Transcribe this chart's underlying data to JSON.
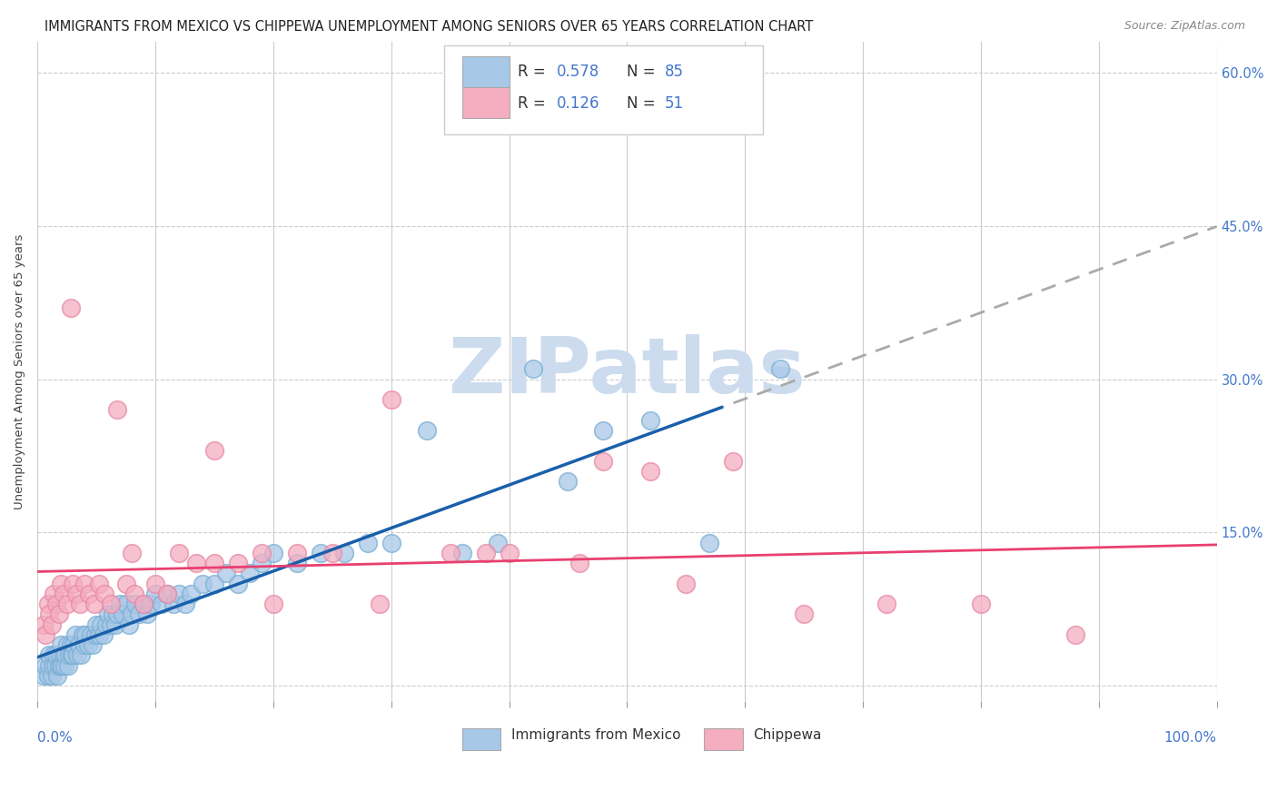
{
  "title": "IMMIGRANTS FROM MEXICO VS CHIPPEWA UNEMPLOYMENT AMONG SENIORS OVER 65 YEARS CORRELATION CHART",
  "source": "Source: ZipAtlas.com",
  "ylabel": "Unemployment Among Seniors over 65 years",
  "yticks": [
    0.0,
    0.15,
    0.3,
    0.45,
    0.6
  ],
  "ytick_labels": [
    "",
    "15.0%",
    "30.0%",
    "45.0%",
    "60.0%"
  ],
  "xlim": [
    0.0,
    1.0
  ],
  "ylim": [
    -0.015,
    0.63
  ],
  "blue_color": "#a8c8e8",
  "pink_color": "#f4aec0",
  "blue_edge": "#7aafd4",
  "pink_edge": "#e888a8",
  "trend_blue": "#1a5faa",
  "trend_pink": "#e84070",
  "trend_dashed_color": "#aaaaaa",
  "watermark_color": "#ccdcee",
  "background_color": "#ffffff",
  "grid_color": "#cccccc",
  "blue_x": [
    0.005,
    0.007,
    0.009,
    0.01,
    0.01,
    0.012,
    0.013,
    0.014,
    0.015,
    0.016,
    0.017,
    0.018,
    0.019,
    0.02,
    0.02,
    0.021,
    0.022,
    0.023,
    0.024,
    0.025,
    0.026,
    0.027,
    0.028,
    0.029,
    0.03,
    0.031,
    0.032,
    0.034,
    0.035,
    0.037,
    0.038,
    0.04,
    0.041,
    0.043,
    0.045,
    0.047,
    0.049,
    0.05,
    0.052,
    0.054,
    0.056,
    0.058,
    0.06,
    0.062,
    0.064,
    0.066,
    0.068,
    0.07,
    0.072,
    0.075,
    0.078,
    0.08,
    0.083,
    0.086,
    0.09,
    0.093,
    0.096,
    0.1,
    0.105,
    0.11,
    0.115,
    0.12,
    0.125,
    0.13,
    0.14,
    0.15,
    0.16,
    0.17,
    0.18,
    0.19,
    0.2,
    0.22,
    0.24,
    0.26,
    0.28,
    0.3,
    0.33,
    0.36,
    0.39,
    0.42,
    0.45,
    0.48,
    0.52,
    0.57,
    0.63
  ],
  "blue_y": [
    0.01,
    0.02,
    0.01,
    0.02,
    0.03,
    0.01,
    0.02,
    0.03,
    0.02,
    0.03,
    0.01,
    0.02,
    0.03,
    0.02,
    0.04,
    0.02,
    0.03,
    0.02,
    0.03,
    0.04,
    0.02,
    0.03,
    0.04,
    0.03,
    0.03,
    0.04,
    0.05,
    0.03,
    0.04,
    0.03,
    0.05,
    0.04,
    0.05,
    0.04,
    0.05,
    0.04,
    0.05,
    0.06,
    0.05,
    0.06,
    0.05,
    0.06,
    0.07,
    0.06,
    0.07,
    0.06,
    0.07,
    0.08,
    0.07,
    0.08,
    0.06,
    0.07,
    0.08,
    0.07,
    0.08,
    0.07,
    0.08,
    0.09,
    0.08,
    0.09,
    0.08,
    0.09,
    0.08,
    0.09,
    0.1,
    0.1,
    0.11,
    0.1,
    0.11,
    0.12,
    0.13,
    0.12,
    0.13,
    0.13,
    0.14,
    0.14,
    0.25,
    0.13,
    0.14,
    0.31,
    0.2,
    0.25,
    0.26,
    0.14,
    0.31
  ],
  "pink_x": [
    0.005,
    0.007,
    0.009,
    0.01,
    0.012,
    0.014,
    0.016,
    0.018,
    0.02,
    0.022,
    0.025,
    0.028,
    0.03,
    0.033,
    0.036,
    0.04,
    0.044,
    0.048,
    0.052,
    0.057,
    0.062,
    0.068,
    0.075,
    0.082,
    0.09,
    0.1,
    0.11,
    0.12,
    0.135,
    0.15,
    0.17,
    0.19,
    0.22,
    0.25,
    0.29,
    0.35,
    0.4,
    0.46,
    0.52,
    0.59,
    0.65,
    0.72,
    0.8,
    0.88,
    0.55,
    0.48,
    0.38,
    0.3,
    0.2,
    0.08,
    0.15
  ],
  "pink_y": [
    0.06,
    0.05,
    0.08,
    0.07,
    0.06,
    0.09,
    0.08,
    0.07,
    0.1,
    0.09,
    0.08,
    0.37,
    0.1,
    0.09,
    0.08,
    0.1,
    0.09,
    0.08,
    0.1,
    0.09,
    0.08,
    0.27,
    0.1,
    0.09,
    0.08,
    0.1,
    0.09,
    0.13,
    0.12,
    0.12,
    0.12,
    0.13,
    0.13,
    0.13,
    0.08,
    0.13,
    0.13,
    0.12,
    0.21,
    0.22,
    0.07,
    0.08,
    0.08,
    0.05,
    0.1,
    0.22,
    0.13,
    0.28,
    0.08,
    0.13,
    0.23
  ]
}
